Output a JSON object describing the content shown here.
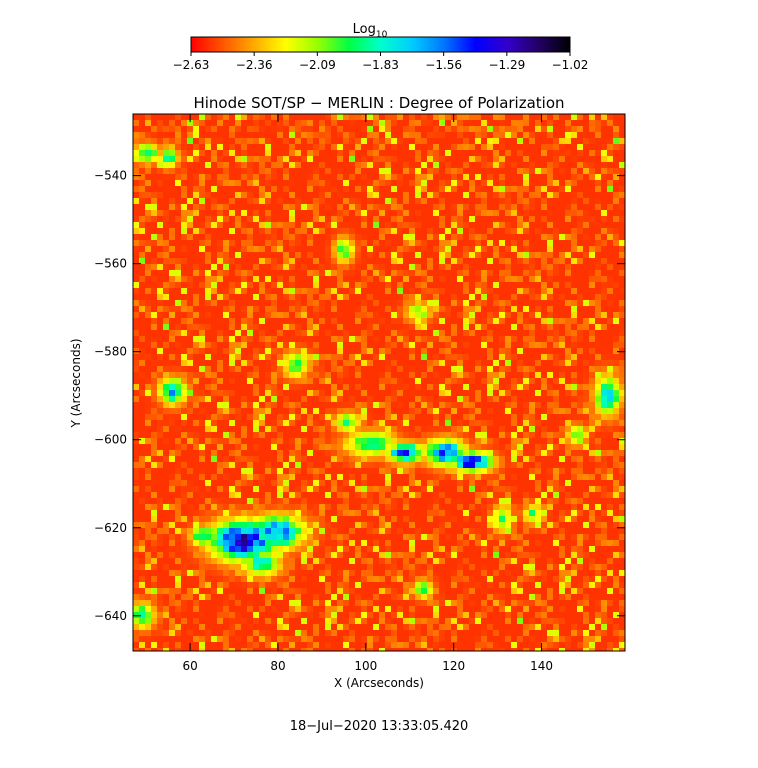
{
  "chart_data": {
    "type": "heatmap",
    "title": "Hinode SOT/SP − MERLIN : Degree of Polarization",
    "xlabel": "X (Arcseconds)",
    "ylabel": "Y (Arcseconds)",
    "footer": "18−Jul−2020 13:33:05.420",
    "xlim": [
      47,
      159
    ],
    "ylim": [
      -648,
      -526
    ],
    "xticks": [
      60,
      80,
      100,
      120,
      140
    ],
    "yticks": [
      -540,
      -560,
      -580,
      -600,
      -620,
      -640
    ],
    "colorbar": {
      "label_base": "Log",
      "label_sub": "10",
      "min": -2.63,
      "max": -1.02,
      "ticks": [
        "−2.63",
        "−2.36",
        "−2.09",
        "−1.83",
        "−1.56",
        "−1.29",
        "−1.02"
      ],
      "colormap": [
        "#ff0000",
        "#ff5500",
        "#ffaa00",
        "#ffff00",
        "#99ff00",
        "#00ff44",
        "#00ffcc",
        "#00ccff",
        "#0077ff",
        "#0000ff",
        "#3300cc",
        "#220066",
        "#000000"
      ]
    },
    "background_level": -2.55,
    "features": [
      {
        "x": 72,
        "y": -623,
        "peak": -1.15,
        "sx": 5,
        "sy": 3
      },
      {
        "x": 80,
        "y": -621,
        "peak": -1.45,
        "sx": 4,
        "sy": 2.5
      },
      {
        "x": 63,
        "y": -622,
        "peak": -1.75,
        "sx": 2,
        "sy": 1.5
      },
      {
        "x": 76,
        "y": -628,
        "peak": -1.75,
        "sx": 3,
        "sy": 2
      },
      {
        "x": 124,
        "y": -605,
        "peak": -1.2,
        "sx": 3,
        "sy": 1.5
      },
      {
        "x": 118,
        "y": -603,
        "peak": -1.4,
        "sx": 3,
        "sy": 2
      },
      {
        "x": 109,
        "y": -603,
        "peak": -1.45,
        "sx": 3,
        "sy": 1.5
      },
      {
        "x": 101,
        "y": -601,
        "peak": -1.85,
        "sx": 4,
        "sy": 2
      },
      {
        "x": 56,
        "y": -589,
        "peak": -1.6,
        "sx": 2,
        "sy": 2
      },
      {
        "x": 155,
        "y": -590,
        "peak": -1.65,
        "sx": 2,
        "sy": 3
      },
      {
        "x": 96,
        "y": -596,
        "peak": -1.9,
        "sx": 2,
        "sy": 1.5
      },
      {
        "x": 84,
        "y": -583,
        "peak": -1.9,
        "sx": 2,
        "sy": 2
      },
      {
        "x": 50,
        "y": -535,
        "peak": -1.8,
        "sx": 2,
        "sy": 1.5
      },
      {
        "x": 55,
        "y": -536,
        "peak": -1.85,
        "sx": 1.5,
        "sy": 1.5
      },
      {
        "x": 95,
        "y": -557,
        "peak": -1.9,
        "sx": 1.5,
        "sy": 2
      },
      {
        "x": 112,
        "y": -571,
        "peak": -2.0,
        "sx": 2,
        "sy": 1.5
      },
      {
        "x": 131,
        "y": -618,
        "peak": -1.9,
        "sx": 1.5,
        "sy": 2
      },
      {
        "x": 148,
        "y": -599,
        "peak": -1.85,
        "sx": 1.5,
        "sy": 1.5
      },
      {
        "x": 138,
        "y": -617,
        "peak": -1.95,
        "sx": 1.5,
        "sy": 1.5
      },
      {
        "x": 49,
        "y": -640,
        "peak": -1.85,
        "sx": 2,
        "sy": 2
      },
      {
        "x": 113,
        "y": -634,
        "peak": -1.95,
        "sx": 1.5,
        "sy": 1.5
      }
    ]
  }
}
